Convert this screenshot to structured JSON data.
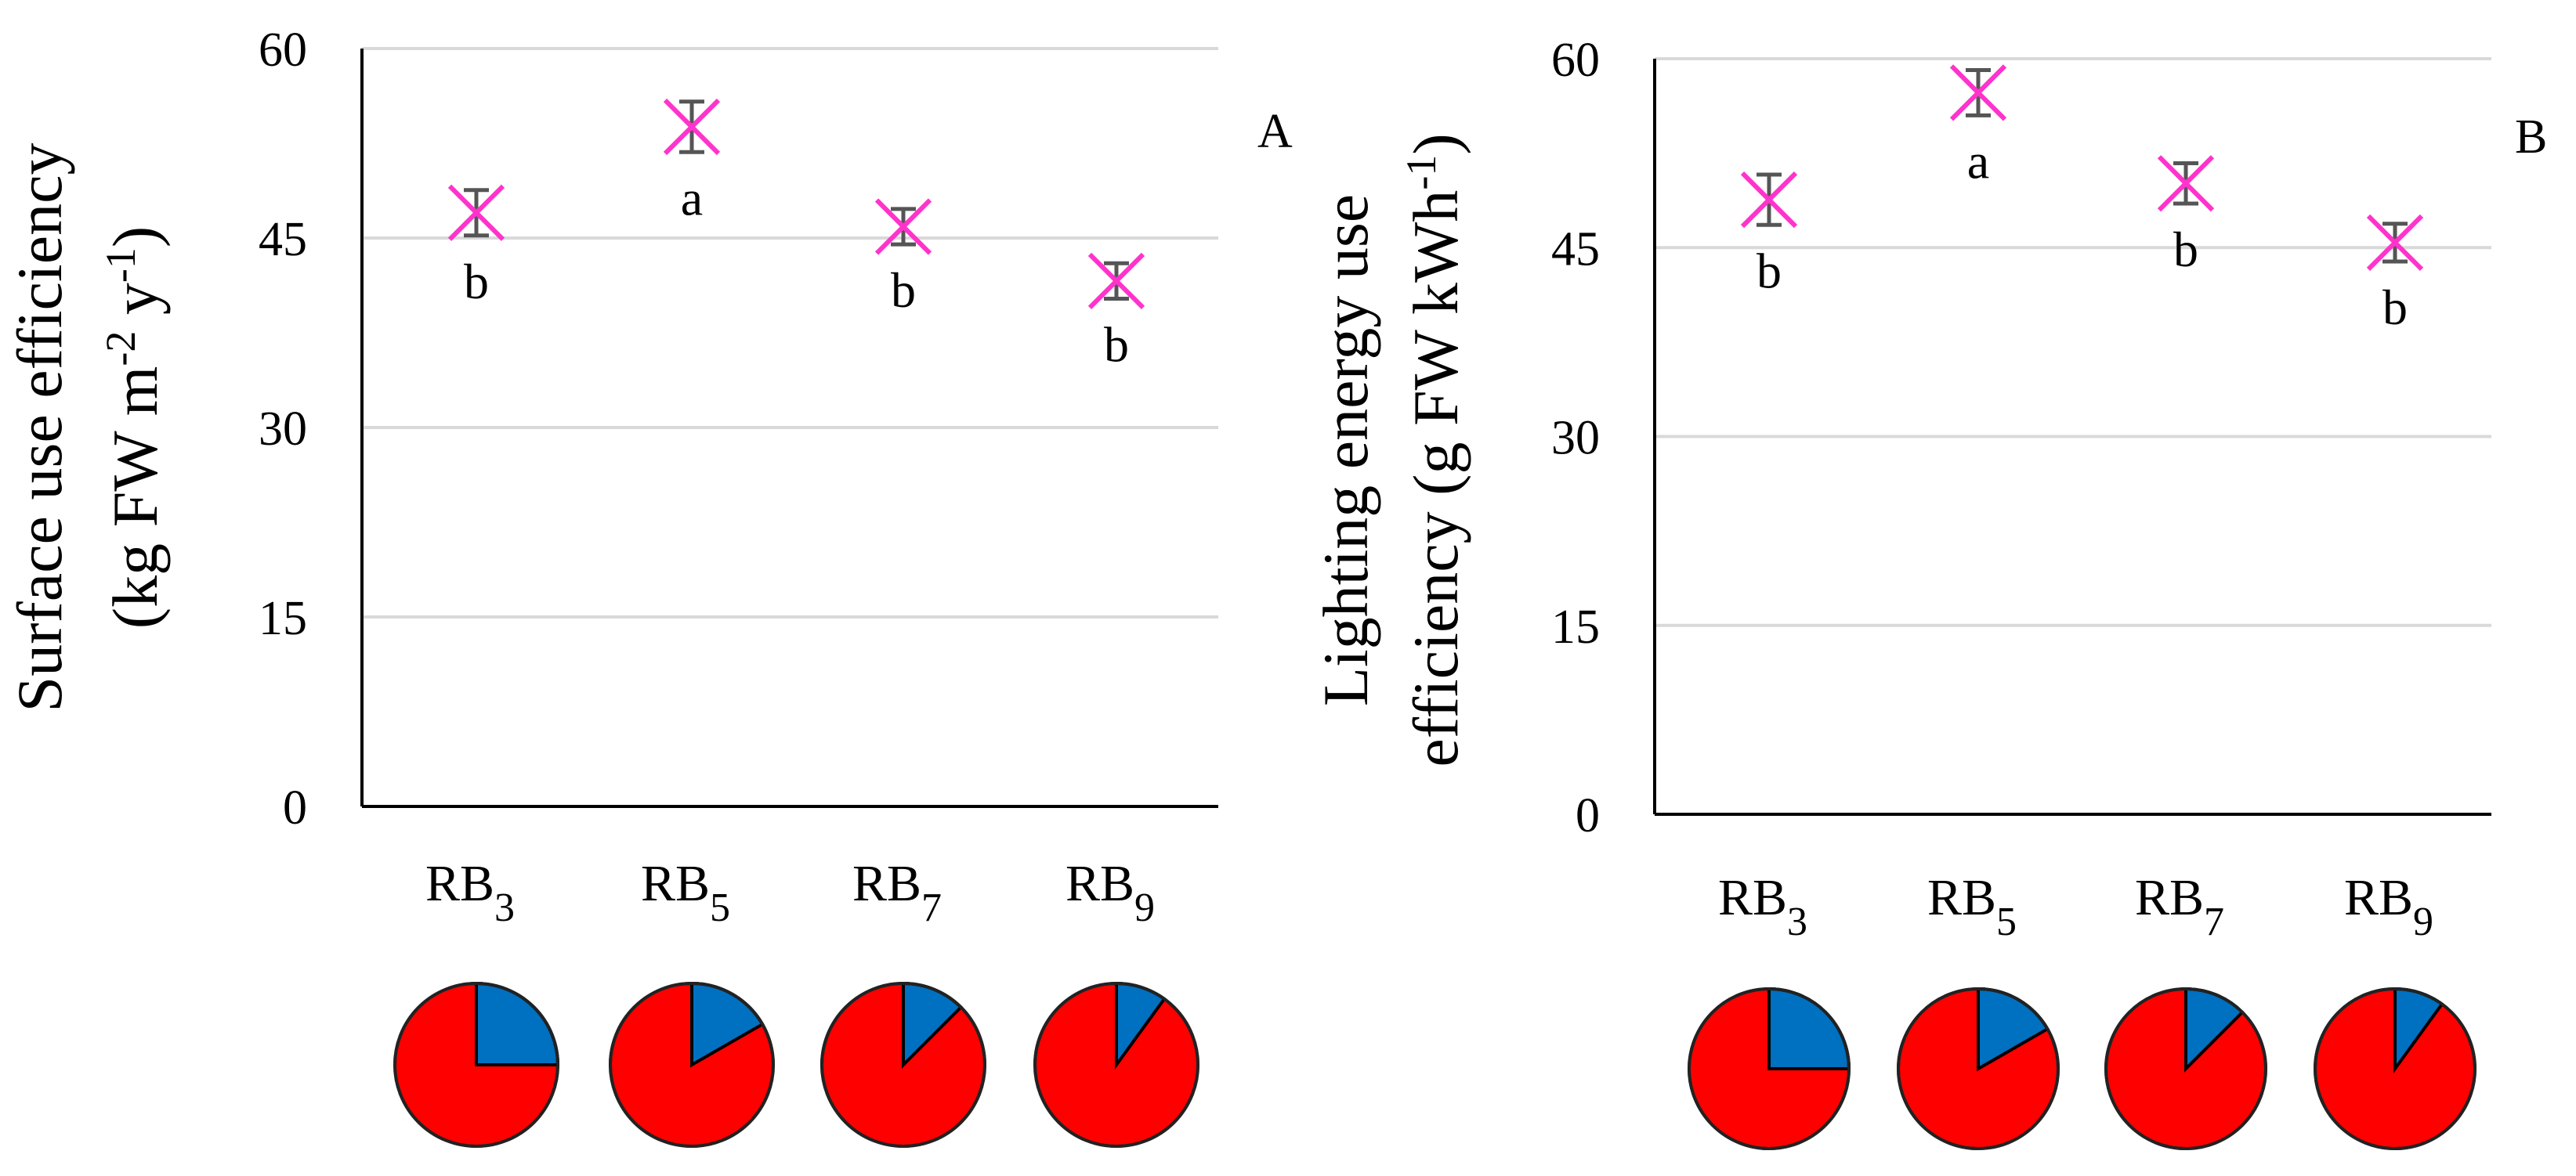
{
  "chart_data": [
    {
      "type": "scatter",
      "panel_label": "A",
      "ylabel_line1": "Surface use efficiency",
      "ylabel_line2_prefix": "(kg FW m",
      "ylabel_line2_sup1": "-2",
      "ylabel_line2_mid": " y",
      "ylabel_line2_sup2": "-1",
      "ylabel_line2_suffix": ")",
      "ylim": [
        0,
        60
      ],
      "yticks": [
        0,
        15,
        30,
        45,
        60
      ],
      "ytick_labels": [
        "0",
        "15",
        "30",
        "45",
        "60"
      ],
      "grid": true,
      "categories": [
        {
          "base": "RB",
          "sub": "3"
        },
        {
          "base": "RB",
          "sub": "5"
        },
        {
          "base": "RB",
          "sub": "7"
        },
        {
          "base": "RB",
          "sub": "9"
        }
      ],
      "values": [
        47.0,
        53.8,
        45.9,
        41.6
      ],
      "errors": [
        1.8,
        2.0,
        1.4,
        1.4
      ],
      "significance": [
        "b",
        "a",
        "b",
        "b"
      ],
      "blue_fraction": [
        0.25,
        0.167,
        0.125,
        0.1
      ],
      "marker_color": "#ff33cc",
      "errorbar_color": "#555555",
      "pie_colors": {
        "red": "#ff0000",
        "blue": "#0070c0"
      }
    },
    {
      "type": "scatter",
      "panel_label": "B",
      "ylabel_line1": "Lighting energy use",
      "ylabel_line2_prefix": "efficiency (g FW kWh",
      "ylabel_line2_sup1": "-1",
      "ylabel_line2_mid": "",
      "ylabel_line2_sup2": "",
      "ylabel_line2_suffix": ")",
      "ylim": [
        0,
        60
      ],
      "yticks": [
        0,
        15,
        30,
        45,
        60
      ],
      "ytick_labels": [
        "0",
        "15",
        "30",
        "45",
        "60"
      ],
      "grid": true,
      "categories": [
        {
          "base": "RB",
          "sub": "3"
        },
        {
          "base": "RB",
          "sub": "5"
        },
        {
          "base": "RB",
          "sub": "7"
        },
        {
          "base": "RB",
          "sub": "9"
        }
      ],
      "values": [
        48.8,
        57.3,
        50.1,
        45.4
      ],
      "errors": [
        2.0,
        1.8,
        1.6,
        1.5
      ],
      "significance": [
        "b",
        "a",
        "b",
        "b"
      ],
      "blue_fraction": [
        0.25,
        0.167,
        0.125,
        0.1
      ],
      "marker_color": "#ff33cc",
      "errorbar_color": "#555555",
      "pie_colors": {
        "red": "#ff0000",
        "blue": "#0070c0"
      }
    }
  ]
}
